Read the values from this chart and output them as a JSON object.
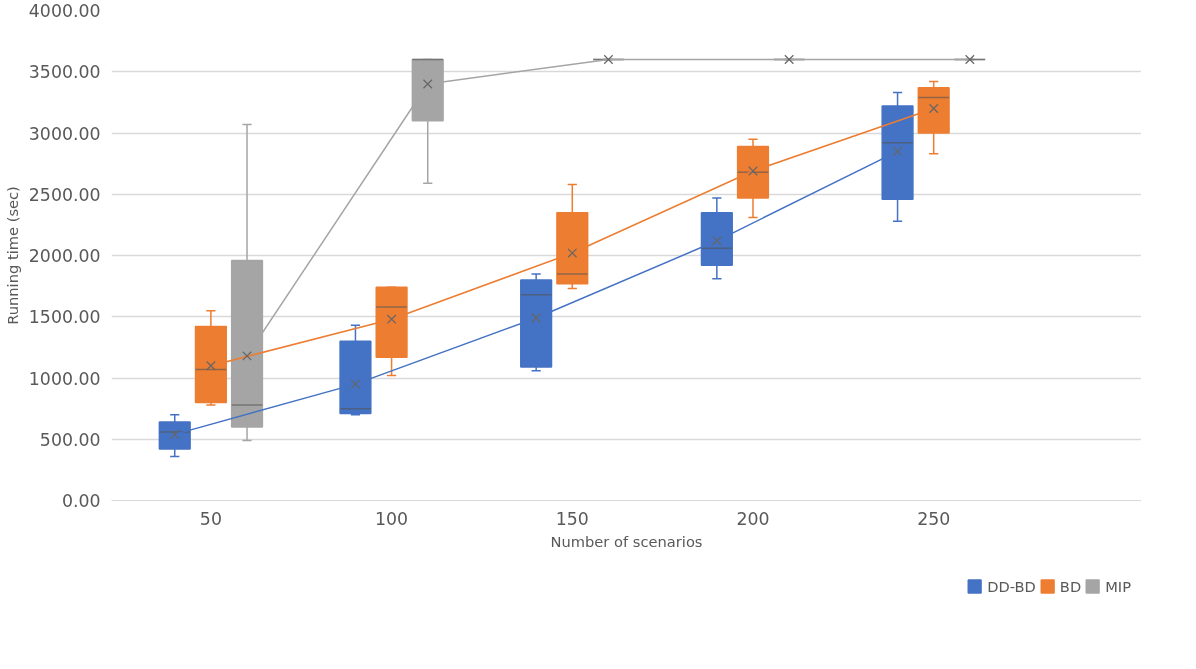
{
  "chart_data": {
    "type": "box",
    "xlabel": "Number of scenarios",
    "ylabel": "Running time (sec)",
    "categories": [
      "50",
      "100",
      "150",
      "200",
      "250"
    ],
    "ylim": [
      0,
      4000
    ],
    "yticks": [
      {
        "value": 0,
        "label": "0.00"
      },
      {
        "value": 500,
        "label": "500.00"
      },
      {
        "value": 1000,
        "label": "1000.00"
      },
      {
        "value": 1500,
        "label": "1500.00"
      },
      {
        "value": 2000,
        "label": "2000.00"
      },
      {
        "value": 2500,
        "label": "2500.00"
      },
      {
        "value": 3000,
        "label": "3000.00"
      },
      {
        "value": 3500,
        "label": "3500.00"
      },
      {
        "value": 4000,
        "label": "4000.00"
      }
    ],
    "grid": "y",
    "legend": "bottom",
    "marker": "cross",
    "series": [
      {
        "name": "DD-BD",
        "color": "#4472c4",
        "boxes": [
          {
            "low": 360,
            "q1": 420,
            "median": 560,
            "q3": 640,
            "high": 700
          },
          {
            "low": 700,
            "q1": 710,
            "median": 750,
            "q3": 1300,
            "high": 1430
          },
          {
            "low": 1060,
            "q1": 1090,
            "median": 1680,
            "q3": 1800,
            "high": 1850
          },
          {
            "low": 1810,
            "q1": 1920,
            "median": 2060,
            "q3": 2350,
            "high": 2470
          },
          {
            "low": 2280,
            "q1": 2460,
            "median": 2920,
            "q3": 3220,
            "high": 3330
          }
        ]
      },
      {
        "name": "BD",
        "color": "#ed7d31",
        "boxes": [
          {
            "low": 780,
            "q1": 800,
            "median": 1070,
            "q3": 1420,
            "high": 1550
          },
          {
            "low": 1020,
            "q1": 1170,
            "median": 1580,
            "q3": 1740,
            "high": 1740
          },
          {
            "low": 1730,
            "q1": 1770,
            "median": 1850,
            "q3": 2350,
            "high": 2580
          },
          {
            "low": 2310,
            "q1": 2470,
            "median": 2680,
            "q3": 2890,
            "high": 2950
          },
          {
            "low": 2830,
            "q1": 3000,
            "median": 3290,
            "q3": 3370,
            "high": 3420
          }
        ]
      },
      {
        "type": "line",
        "color": "#4472c4",
        "values": [
          540,
          950,
          1490,
          2120,
          2850
        ]
      },
      {
        "type": "line",
        "color": "#ed7d31",
        "values": [
          1100,
          1480,
          2020,
          2690,
          3200
        ]
      },
      {
        "type": "line",
        "color": "#a5a5a5",
        "values": [
          1180,
          3400,
          3600,
          3600,
          3600
        ]
      },
      {
        "name": "MIP",
        "color": "#a5a5a5",
        "boxes": [
          {
            "low": 490,
            "q1": 600,
            "median": 780,
            "q3": 1960,
            "high": 3070
          },
          {
            "low": 2590,
            "q1": 3100,
            "median": 3600,
            "q3": 3600,
            "high": 3600
          },
          {
            "low": 3600,
            "q1": 3600,
            "median": 3600,
            "q3": 3600,
            "high": 3600
          },
          {
            "low": 3600,
            "q1": 3600,
            "median": 3600,
            "q3": 3600,
            "high": 3600
          },
          {
            "low": 3600,
            "q1": 3600,
            "median": 3600,
            "q3": 3600,
            "high": 3600
          }
        ]
      }
    ]
  }
}
